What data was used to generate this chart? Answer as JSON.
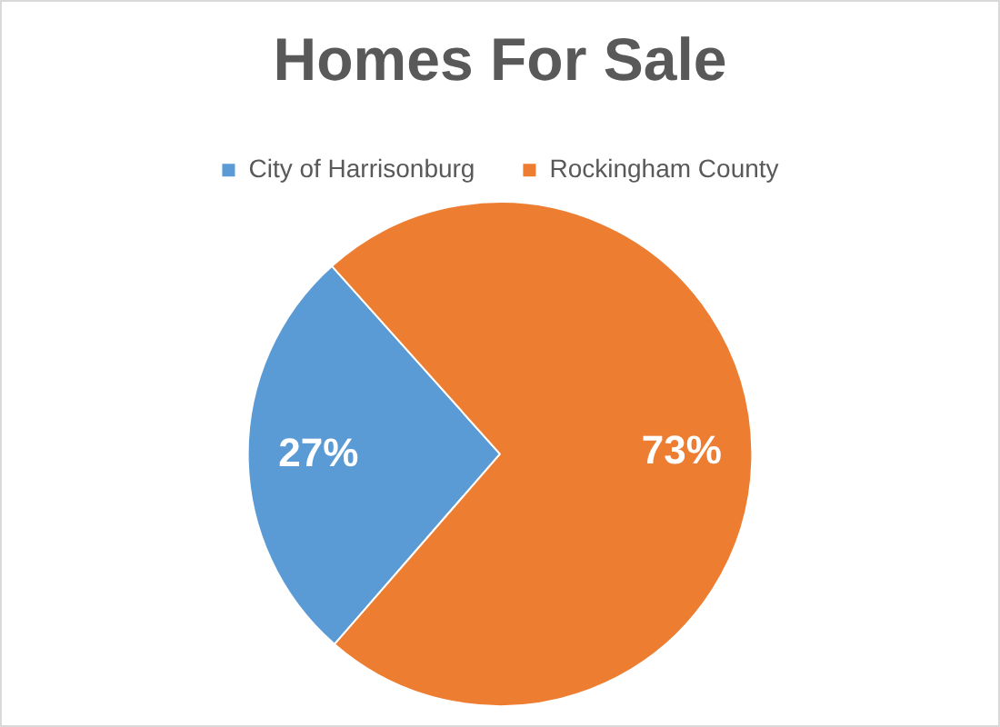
{
  "chart_data": {
    "type": "pie",
    "title": "Homes For Sale",
    "categories": [
      "City of Harrisonburg",
      "Rockingham County"
    ],
    "values": [
      27,
      73
    ],
    "colors": [
      "#5b9bd5",
      "#ed7d31"
    ],
    "value_labels": [
      "27%",
      "73%"
    ],
    "legend": "top"
  }
}
